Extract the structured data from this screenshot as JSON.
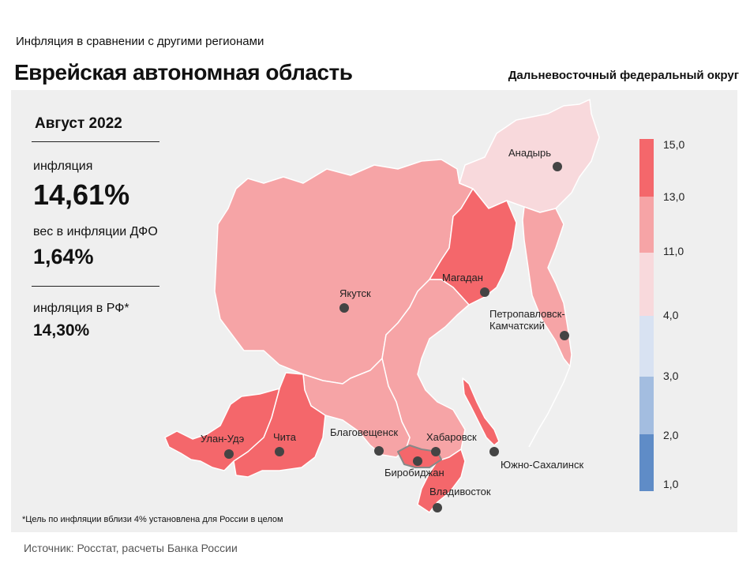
{
  "header": {
    "subtitle": "Инфляция в сравнении с другими регионами",
    "title": "Еврейская автономная область",
    "district": "Дальневосточный федеральный округ"
  },
  "stats": {
    "period": "Август 2022",
    "inflation_label": "инфляция",
    "inflation_value": "14,61%",
    "weight_label": "вес в инфляции ДФО",
    "weight_value": "1,64%",
    "rf_label": "инфляция в РФ*",
    "rf_value": "14,30%"
  },
  "legend": {
    "ticks": [
      "15,0",
      "13,0",
      "11,0",
      "4,0",
      "3,0",
      "2,0",
      "1,0"
    ],
    "colors": [
      "#f4676b",
      "#f6a4a6",
      "#f8d9dc",
      "#d8e2f2",
      "#a3bde0",
      "#5f8cc7"
    ]
  },
  "cities": {
    "anadyr": "Анадырь",
    "magadan": "Магадан",
    "yakutsk": "Якутск",
    "petropavlovsk_1": "Петропавловск-",
    "petropavlovsk_2": "Камчатский",
    "ulan_ude": "Улан-Удэ",
    "chita": "Чита",
    "blagoveshchensk": "Благовещенск",
    "khabarovsk": "Хабаровск",
    "yuzhno": "Южно-Сахалинск",
    "birobidzhan": "Биробиджан",
    "vladivostok": "Владивосток"
  },
  "region_colors": {
    "high": "#f4676b",
    "mid": "#f6a4a6",
    "low": "#f8d9dc",
    "border": "#ffffff",
    "dot": "#444444"
  },
  "footnote": "*Цель по инфляции вблизи 4% установлена для России в целом",
  "source": "Источник: Росстат, расчеты Банка России"
}
